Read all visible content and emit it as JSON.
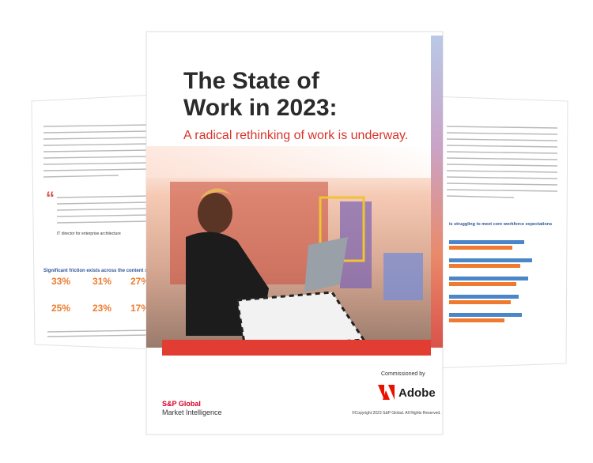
{
  "left_page": {
    "quote_attribution": "IT director for enterprise architecture",
    "heading": "Significant friction exists across the content supply c",
    "stats": [
      "33%",
      "31%",
      "27%",
      "25%",
      "23%",
      "17%"
    ]
  },
  "cover": {
    "title_line_1": "The State of",
    "title_line_2": "Work in 2023:",
    "subtitle": "A radical rethinking of work is underway.",
    "commissioned_by": "Commissioned by",
    "sponsor": "Adobe",
    "publisher": "S&P Global",
    "publisher_unit": "Market Intelligence",
    "copyright": "©Copyright 2023 S&P Global. All Rights Reserved."
  },
  "right_page": {
    "heading": "is struggling to meet core workforce expectations"
  }
}
